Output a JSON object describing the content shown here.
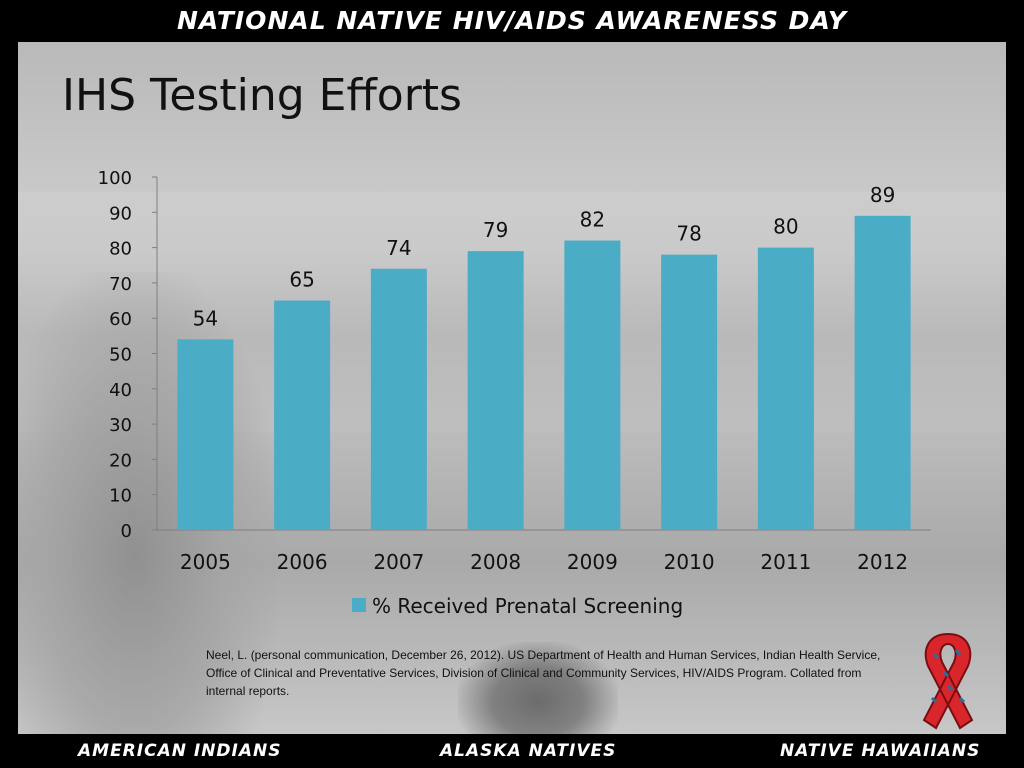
{
  "header": {
    "banner": "NATIONAL NATIVE HIV/AIDS AWARENESS DAY"
  },
  "slide": {
    "title": "IHS Testing Efforts",
    "citation": "Neel, L. (personal communication, December 26, 2012). US Department of Health and Human Services, Indian Health Service, Office of Clinical and Preventative Services, Division of Clinical and Community Services, HIV/AIDS Program. Collated from internal reports."
  },
  "footer": {
    "left": "AMERICAN INDIANS",
    "middle": "ALASKA NATIVES",
    "right": "NATIVE HAWAIIANS"
  },
  "colors": {
    "bar": "#4BACC6",
    "ribbon": "#D9262C"
  },
  "chart_data": {
    "type": "bar",
    "title": "",
    "xlabel": "",
    "ylabel": "",
    "categories": [
      "2005",
      "2006",
      "2007",
      "2008",
      "2009",
      "2010",
      "2011",
      "2012"
    ],
    "series": [
      {
        "name": "% Received Prenatal Screening",
        "values": [
          54,
          65,
          74,
          79,
          82,
          78,
          80,
          89
        ]
      }
    ],
    "ylim": [
      0,
      100
    ],
    "yticks": [
      0,
      10,
      20,
      30,
      40,
      50,
      60,
      70,
      80,
      90,
      100
    ],
    "data_labels": true,
    "grid": false,
    "legend": "bottom"
  }
}
